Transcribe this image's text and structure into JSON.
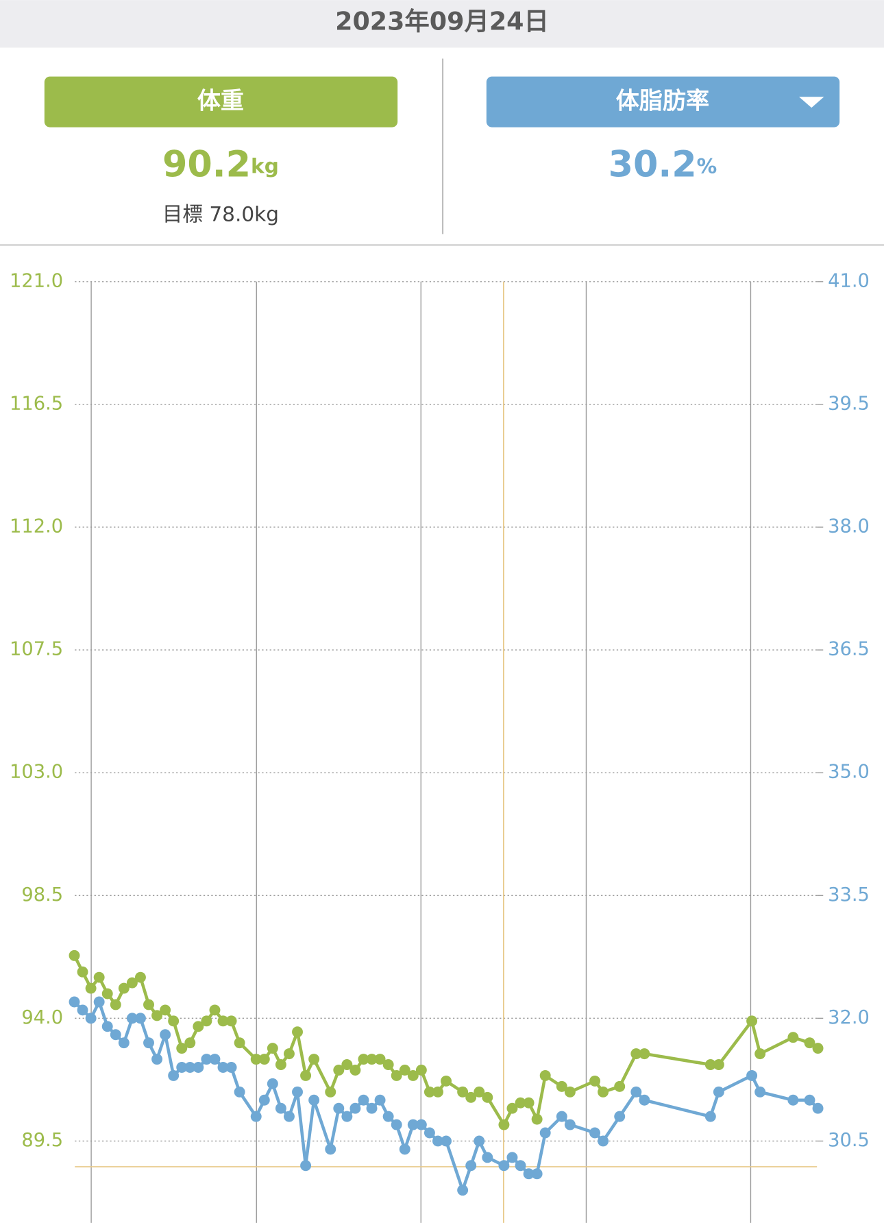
{
  "header": {
    "date": "2023年09月24日"
  },
  "panels": [
    {
      "label": "体重",
      "value": "90.2",
      "unit": "kg",
      "goal": "目標 78.0kg"
    },
    {
      "label": "体脂肪率",
      "value": "30.2",
      "unit": "%"
    }
  ],
  "chart_data": {
    "type": "line",
    "x": [
      0,
      1,
      2,
      3,
      4,
      5,
      6,
      7,
      8,
      9,
      10,
      11,
      12,
      13,
      14,
      15,
      16,
      17,
      18,
      19,
      20,
      22,
      23,
      24,
      25,
      26,
      27,
      28,
      29,
      31,
      32,
      33,
      34,
      35,
      36,
      37,
      38,
      39,
      40,
      41,
      42,
      43,
      44,
      45,
      47,
      48,
      49,
      50,
      52,
      53,
      54,
      55,
      56,
      57,
      59,
      60,
      63,
      64,
      66,
      68,
      69,
      77,
      78,
      82,
      83,
      87,
      89,
      90
    ],
    "xlim": [
      -9,
      98
    ],
    "ylim": [
      86.5,
      121
    ],
    "yticks": [
      89.5,
      {
        "value": 94,
        "label": "94.0"
      },
      98.5,
      {
        "value": 103,
        "label": "103.0"
      },
      107.5,
      {
        "value": 112,
        "label": "112.0"
      },
      116.5,
      {
        "value": 121,
        "label": "121.0"
      }
    ],
    "y2lim": [
      29.5,
      41
    ],
    "y2ticks": [
      30.5,
      {
        "value": 32,
        "label": "32.0"
      },
      33.5,
      {
        "value": 35,
        "label": "35.0"
      },
      36.5,
      {
        "value": 38,
        "label": "38.0"
      },
      39.5,
      {
        "value": 41,
        "label": "41.0"
      }
    ],
    "grid": true,
    "series": [
      {
        "color": "#9cbb4b",
        "axis": "y",
        "values": [
          96.3,
          95.7,
          95.1,
          95.5,
          94.9,
          94.5,
          95.1,
          95.3,
          95.5,
          94.5,
          94.1,
          94.3,
          93.9,
          92.9,
          93.1,
          93.7,
          93.9,
          94.3,
          93.9,
          93.9,
          93.1,
          92.5,
          92.5,
          92.9,
          92.3,
          92.7,
          93.5,
          91.9,
          92.5,
          91.3,
          92.1,
          92.3,
          92.1,
          92.5,
          92.5,
          92.5,
          92.3,
          91.9,
          92.1,
          91.9,
          92.1,
          91.3,
          91.3,
          91.7,
          91.3,
          91.1,
          91.3,
          91.1,
          90.1,
          90.7,
          90.9,
          90.9,
          90.3,
          91.9,
          91.5,
          91.3,
          91.7,
          91.3,
          91.5,
          92.7,
          92.7,
          92.3,
          92.3,
          93.9,
          92.7,
          93.3,
          93.1,
          92.9
        ]
      },
      {
        "color": "#6fa8d4",
        "axis": "y2",
        "values": [
          32.2,
          32.1,
          32.0,
          32.2,
          31.9,
          31.8,
          31.7,
          32.0,
          32.0,
          31.7,
          31.5,
          31.8,
          31.3,
          31.4,
          31.4,
          31.4,
          31.5,
          31.5,
          31.4,
          31.4,
          31.1,
          30.8,
          31.0,
          31.2,
          30.9,
          30.8,
          31.1,
          30.2,
          31.0,
          30.4,
          30.9,
          30.8,
          30.9,
          31.0,
          30.9,
          31.0,
          30.8,
          30.7,
          30.4,
          30.7,
          30.7,
          30.6,
          30.5,
          30.5,
          29.9,
          30.2,
          30.5,
          30.3,
          30.2,
          30.3,
          30.2,
          30.1,
          30.1,
          30.6,
          30.8,
          30.7,
          30.6,
          30.5,
          30.8,
          31.1,
          31.0,
          30.8,
          31.1,
          31.3,
          31.1,
          31.0,
          31.0,
          30.9
        ]
      }
    ]
  }
}
